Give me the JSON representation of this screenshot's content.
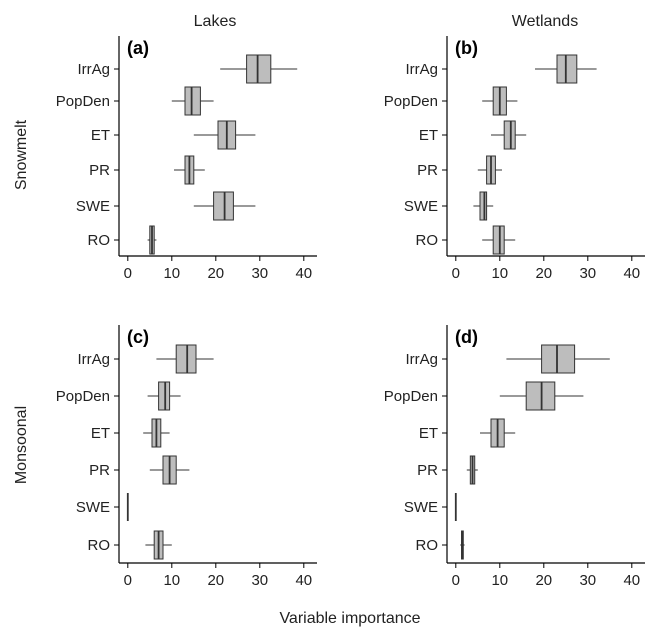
{
  "figure": {
    "col_titles": [
      "Lakes",
      "Wetlands"
    ],
    "row_titles": [
      "Snowmelt",
      "Monsoonal"
    ],
    "xlabel": "Variable importance"
  },
  "chart_data": [
    {
      "type": "boxplot",
      "panel_label": "(a)",
      "column": "Lakes",
      "row": "Snowmelt",
      "categories": [
        "IrrAg",
        "PopDen",
        "ET",
        "PR",
        "SWE",
        "RO"
      ],
      "xlim": [
        -2,
        43
      ],
      "xticks": [
        0,
        10,
        20,
        30,
        40
      ],
      "boxes": [
        {
          "category": "IrrAg",
          "min": 21,
          "q1": 27,
          "median": 29.5,
          "q3": 32.5,
          "max": 38.5
        },
        {
          "category": "PopDen",
          "min": 10,
          "q1": 13,
          "median": 14.5,
          "q3": 16.5,
          "max": 19.5
        },
        {
          "category": "ET",
          "min": 15,
          "q1": 20.5,
          "median": 22.5,
          "q3": 24.5,
          "max": 29
        },
        {
          "category": "PR",
          "min": 10.5,
          "q1": 13,
          "median": 14,
          "q3": 15,
          "max": 17.5
        },
        {
          "category": "SWE",
          "min": 15,
          "q1": 19.5,
          "median": 22,
          "q3": 24,
          "max": 29
        },
        {
          "category": "RO",
          "min": 4.5,
          "q1": 5,
          "median": 5.5,
          "q3": 6,
          "max": 6.5
        }
      ]
    },
    {
      "type": "boxplot",
      "panel_label": "(b)",
      "column": "Wetlands",
      "row": "Snowmelt",
      "categories": [
        "IrrAg",
        "PopDen",
        "ET",
        "PR",
        "SWE",
        "RO"
      ],
      "xlim": [
        -2,
        43
      ],
      "xticks": [
        0,
        10,
        20,
        30,
        40
      ],
      "boxes": [
        {
          "category": "IrrAg",
          "min": 18,
          "q1": 23,
          "median": 25,
          "q3": 27.5,
          "max": 32
        },
        {
          "category": "PopDen",
          "min": 6,
          "q1": 8.5,
          "median": 10,
          "q3": 11.5,
          "max": 14
        },
        {
          "category": "ET",
          "min": 8,
          "q1": 11,
          "median": 12.5,
          "q3": 13.5,
          "max": 16
        },
        {
          "category": "PR",
          "min": 5,
          "q1": 7,
          "median": 8,
          "q3": 9,
          "max": 10.5
        },
        {
          "category": "SWE",
          "min": 4,
          "q1": 5.5,
          "median": 6.5,
          "q3": 7,
          "max": 8.5
        },
        {
          "category": "RO",
          "min": 6,
          "q1": 8.5,
          "median": 10,
          "q3": 11,
          "max": 13.5
        }
      ]
    },
    {
      "type": "boxplot",
      "panel_label": "(c)",
      "column": "Lakes",
      "row": "Monsoonal",
      "categories": [
        "IrrAg",
        "PopDen",
        "ET",
        "PR",
        "SWE",
        "RO"
      ],
      "xlim": [
        -2,
        43
      ],
      "xticks": [
        0,
        10,
        20,
        30,
        40
      ],
      "boxes": [
        {
          "category": "IrrAg",
          "min": 6.5,
          "q1": 11,
          "median": 13.5,
          "q3": 15.5,
          "max": 19.5
        },
        {
          "category": "PopDen",
          "min": 4.5,
          "q1": 7,
          "median": 8.5,
          "q3": 9.5,
          "max": 12
        },
        {
          "category": "ET",
          "min": 3.5,
          "q1": 5.5,
          "median": 6.5,
          "q3": 7.5,
          "max": 9.5
        },
        {
          "category": "PR",
          "min": 5,
          "q1": 8,
          "median": 9.5,
          "q3": 11,
          "max": 14
        },
        {
          "category": "SWE",
          "min": 0,
          "q1": 0,
          "median": 0,
          "q3": 0,
          "max": 0
        },
        {
          "category": "RO",
          "min": 4,
          "q1": 6,
          "median": 7,
          "q3": 8,
          "max": 10
        }
      ]
    },
    {
      "type": "boxplot",
      "panel_label": "(d)",
      "column": "Wetlands",
      "row": "Monsoonal",
      "categories": [
        "IrrAg",
        "PopDen",
        "ET",
        "PR",
        "SWE",
        "RO"
      ],
      "xlim": [
        -2,
        43
      ],
      "xticks": [
        0,
        10,
        20,
        30,
        40
      ],
      "boxes": [
        {
          "category": "IrrAg",
          "min": 11.5,
          "q1": 19.5,
          "median": 23,
          "q3": 27,
          "max": 35
        },
        {
          "category": "PopDen",
          "min": 10,
          "q1": 16,
          "median": 19.5,
          "q3": 22.5,
          "max": 29
        },
        {
          "category": "ET",
          "min": 5.5,
          "q1": 8,
          "median": 9.5,
          "q3": 11,
          "max": 13.5
        },
        {
          "category": "PR",
          "min": 2.5,
          "q1": 3.3,
          "median": 3.8,
          "q3": 4.3,
          "max": 5
        },
        {
          "category": "SWE",
          "min": 0,
          "q1": 0,
          "median": 0,
          "q3": 0,
          "max": 0
        },
        {
          "category": "RO",
          "min": 1,
          "q1": 1.3,
          "median": 1.5,
          "q3": 1.7,
          "max": 2
        }
      ]
    }
  ]
}
